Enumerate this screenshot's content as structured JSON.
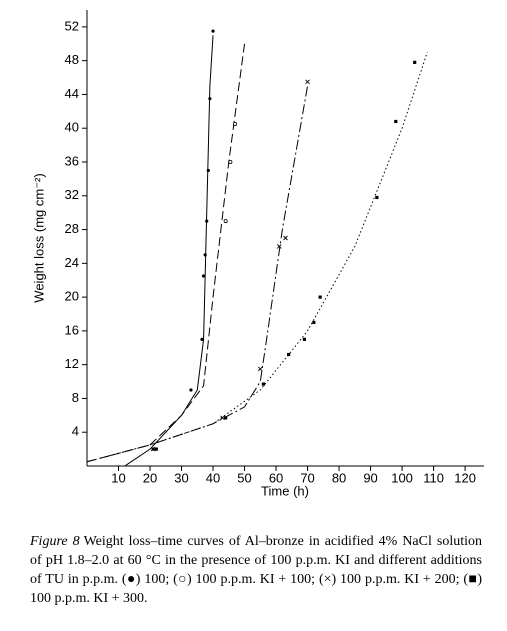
{
  "chart_data": {
    "type": "line",
    "xlabel": "Time (h)",
    "ylabel": "Weight loss (mg cm⁻²)",
    "xlim": [
      0,
      126
    ],
    "xticks": [
      10,
      20,
      30,
      40,
      50,
      60,
      70,
      80,
      90,
      100,
      110,
      120
    ],
    "ylim": [
      0,
      54
    ],
    "yticks": [
      4,
      8,
      12,
      16,
      20,
      24,
      28,
      32,
      36,
      40,
      44,
      48,
      52
    ],
    "color": "#000000",
    "series": [
      {
        "dash": "none",
        "marker": "dot",
        "line": {
          "x": [
            12,
            20,
            30,
            35,
            37,
            38,
            39,
            40
          ],
          "values": [
            0,
            2,
            6,
            9,
            15,
            30,
            45,
            51
          ]
        },
        "points": {
          "x": [
            21,
            33,
            36.5,
            37,
            37.5,
            38,
            38.5,
            39,
            40
          ],
          "values": [
            2,
            9,
            15,
            22.5,
            25,
            29,
            35,
            43.5,
            51.5
          ]
        }
      },
      {
        "dash": "9 4",
        "marker": "circle",
        "line": {
          "x": [
            0,
            20,
            30,
            37,
            40,
            45,
            50
          ],
          "values": [
            0.5,
            2.5,
            6,
            9.5,
            20,
            36,
            50
          ]
        },
        "points": {
          "x": [
            44,
            45.5,
            47
          ],
          "values": [
            29,
            36,
            40.5
          ]
        }
      },
      {
        "dash": "10 3 2 3",
        "marker": "cross",
        "line": {
          "x": [
            0,
            20,
            40,
            50,
            55,
            57,
            62,
            70
          ],
          "values": [
            0.5,
            2.5,
            5,
            7,
            10,
            15,
            28,
            45
          ]
        },
        "points": {
          "x": [
            21,
            43,
            55,
            61,
            63,
            70
          ],
          "values": [
            2,
            5.7,
            11.5,
            26,
            27,
            45.5
          ]
        }
      },
      {
        "dash": "1.5 2.5",
        "marker": "square",
        "line": {
          "x": [
            20,
            40,
            55,
            70,
            85,
            100,
            108
          ],
          "values": [
            2.5,
            5,
            9,
            16,
            26,
            40,
            49
          ]
        },
        "points": {
          "x": [
            22,
            44,
            56,
            64,
            69,
            72,
            74,
            92,
            98,
            104
          ],
          "values": [
            2,
            5.7,
            9.7,
            13.2,
            15,
            17,
            20,
            31.8,
            40.8,
            47.8
          ]
        }
      }
    ],
    "caption_label": "Figure 8",
    "caption": "Weight loss–time curves of Al–bronze in acidified 4% NaCl solution of pH 1.8–2.0 at 60 °C in the presence of 100 p.p.m. KI and different additions of TU in p.p.m. (●) 100; (○) 100 p.p.m. KI + 100; (×) 100 p.p.m. KI + 200; (■) 100 p.p.m. KI + 300."
  }
}
